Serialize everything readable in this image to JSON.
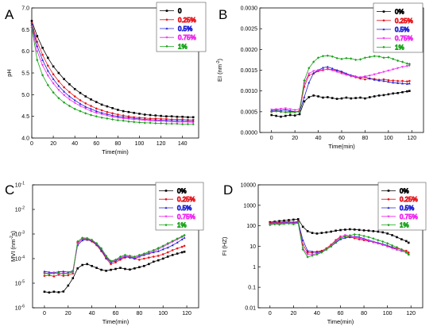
{
  "chart_data": [
    {
      "type": "line",
      "panel": "A",
      "xlabel": "Time(min)",
      "ylabel": "pH",
      "xlim": [
        0,
        155
      ],
      "ylim": [
        4.0,
        7.0
      ],
      "xticks": [
        "0",
        "20",
        "40",
        "60",
        "80",
        "100",
        "120",
        "140"
      ],
      "yticks": [
        "4.0",
        "4.5",
        "5.0",
        "5.5",
        "6.0",
        "6.5",
        "7.0"
      ],
      "legend_position": "top-right",
      "x": [
        0,
        5,
        10,
        15,
        20,
        25,
        30,
        35,
        40,
        45,
        50,
        55,
        60,
        65,
        70,
        75,
        80,
        85,
        90,
        95,
        100,
        105,
        110,
        115,
        120,
        125,
        130,
        135,
        140,
        145,
        150
      ],
      "series": [
        {
          "name": "0",
          "color": "#000000",
          "values": [
            6.7,
            6.35,
            6.08,
            5.85,
            5.65,
            5.5,
            5.36,
            5.24,
            5.13,
            5.04,
            4.96,
            4.89,
            4.83,
            4.77,
            4.73,
            4.69,
            4.65,
            4.62,
            4.6,
            4.58,
            4.56,
            4.54,
            4.53,
            4.52,
            4.51,
            4.5,
            4.5,
            4.49,
            4.49,
            4.48,
            4.48
          ]
        },
        {
          "name": "0.25%",
          "color": "#e8141b",
          "values": [
            6.65,
            6.22,
            5.92,
            5.67,
            5.47,
            5.31,
            5.17,
            5.06,
            4.96,
            4.87,
            4.8,
            4.74,
            4.68,
            4.64,
            4.6,
            4.57,
            4.54,
            4.52,
            4.5,
            4.48,
            4.47,
            4.46,
            4.45,
            4.45,
            4.44,
            4.44,
            4.43,
            4.43,
            4.43,
            4.42,
            4.42
          ]
        },
        {
          "name": "0.5%",
          "color": "#1f1fd6",
          "values": [
            6.62,
            6.12,
            5.8,
            5.55,
            5.36,
            5.2,
            5.07,
            4.96,
            4.87,
            4.79,
            4.72,
            4.67,
            4.62,
            4.58,
            4.55,
            4.52,
            4.5,
            4.48,
            4.47,
            4.45,
            4.44,
            4.43,
            4.42,
            4.42,
            4.41,
            4.41,
            4.4,
            4.4,
            4.4,
            4.39,
            4.39
          ]
        },
        {
          "name": "0.75%",
          "color": "#ee28ee",
          "values": [
            6.58,
            6.0,
            5.68,
            5.44,
            5.26,
            5.11,
            4.99,
            4.89,
            4.81,
            4.74,
            4.68,
            4.62,
            4.58,
            4.55,
            4.52,
            4.49,
            4.47,
            4.45,
            4.44,
            4.43,
            4.42,
            4.41,
            4.4,
            4.39,
            4.39,
            4.38,
            4.38,
            4.37,
            4.37,
            4.37,
            4.36
          ]
        },
        {
          "name": "1%",
          "color": "#17a317",
          "values": [
            6.55,
            5.8,
            5.45,
            5.22,
            5.05,
            4.92,
            4.82,
            4.74,
            4.67,
            4.62,
            4.57,
            4.53,
            4.5,
            4.47,
            4.45,
            4.43,
            4.41,
            4.4,
            4.38,
            4.37,
            4.36,
            4.35,
            4.35,
            4.34,
            4.34,
            4.33,
            4.33,
            4.33,
            4.32,
            4.32,
            4.32
          ]
        }
      ]
    },
    {
      "type": "line",
      "panel": "B",
      "xlabel": "Time(min)",
      "ylabel": "EI (nm",
      "ylabel_sup": "-2",
      "ylabel_end": ")",
      "xlim": [
        -10,
        130
      ],
      "ylim": [
        0,
        0.003
      ],
      "xticks": [
        "0",
        "20",
        "40",
        "60",
        "80",
        "100",
        "120"
      ],
      "yticks": [
        "0.0000",
        "0.0005",
        "0.0010",
        "0.0015",
        "0.0020",
        "0.0025",
        "0.0030"
      ],
      "legend_position": "top-right",
      "x": [
        0,
        4,
        8,
        12,
        16,
        20,
        24,
        28,
        32,
        36,
        40,
        44,
        48,
        52,
        56,
        60,
        64,
        68,
        72,
        76,
        80,
        84,
        88,
        92,
        96,
        100,
        104,
        108,
        112,
        116,
        118
      ],
      "series": [
        {
          "name": "0%",
          "color": "#000000",
          "values": [
            0.00042,
            0.0004,
            0.00038,
            0.0004,
            0.00042,
            0.00041,
            0.00044,
            0.00075,
            0.00085,
            0.00089,
            0.00087,
            0.00084,
            0.00085,
            0.00083,
            0.00081,
            0.00082,
            0.00084,
            0.00082,
            0.00083,
            0.00084,
            0.00082,
            0.00085,
            0.00087,
            0.00089,
            0.0009,
            0.00092,
            0.00094,
            0.00095,
            0.00097,
            0.00099,
            0.001
          ]
        },
        {
          "name": "0.25%",
          "color": "#e8141b",
          "values": [
            0.0005,
            0.00052,
            0.0005,
            0.00049,
            0.00051,
            0.00049,
            0.00052,
            0.0011,
            0.00138,
            0.00142,
            0.00148,
            0.0015,
            0.00153,
            0.00151,
            0.00149,
            0.00145,
            0.0014,
            0.00136,
            0.00133,
            0.0013,
            0.00128,
            0.0013,
            0.00129,
            0.00127,
            0.00128,
            0.00126,
            0.00125,
            0.00124,
            0.00124,
            0.00123,
            0.00124
          ]
        },
        {
          "name": "0.5%",
          "color": "#1f1fd6",
          "values": [
            0.00053,
            0.00054,
            0.00053,
            0.00055,
            0.00052,
            0.0005,
            0.0005,
            0.00085,
            0.0012,
            0.00143,
            0.0015,
            0.00156,
            0.00158,
            0.00154,
            0.0015,
            0.00147,
            0.00142,
            0.00138,
            0.00135,
            0.00132,
            0.00134,
            0.0013,
            0.00127,
            0.00125,
            0.00124,
            0.00122,
            0.0012,
            0.00119,
            0.00118,
            0.00117,
            0.00118
          ]
        },
        {
          "name": "0.75%",
          "color": "#ee28ee",
          "values": [
            0.00055,
            0.00056,
            0.00057,
            0.00058,
            0.00056,
            0.00054,
            0.00056,
            0.00118,
            0.00142,
            0.00148,
            0.0015,
            0.00151,
            0.00152,
            0.0015,
            0.00146,
            0.00142,
            0.00139,
            0.00136,
            0.00134,
            0.00133,
            0.00135,
            0.00137,
            0.0014,
            0.00143,
            0.00146,
            0.00149,
            0.00152,
            0.00155,
            0.00158,
            0.0016,
            0.00161
          ]
        },
        {
          "name": "1%",
          "color": "#17a317",
          "values": [
            0.0005,
            0.00051,
            0.0005,
            0.00049,
            0.00048,
            0.00049,
            0.0005,
            0.00125,
            0.00155,
            0.0017,
            0.0018,
            0.00184,
            0.00185,
            0.00183,
            0.00179,
            0.00177,
            0.00179,
            0.00178,
            0.00175,
            0.00176,
            0.0018,
            0.00182,
            0.00184,
            0.00183,
            0.0018,
            0.00181,
            0.00177,
            0.00173,
            0.0017,
            0.00166,
            0.00165
          ]
        }
      ]
    },
    {
      "type": "line",
      "panel": "C",
      "xlabel": "Time(min)",
      "ylabel": "MVI (nm",
      "ylabel_sup": "-2",
      "ylabel_end": "s)",
      "y_scale": "log",
      "xlim": [
        -10,
        130
      ],
      "ylim": [
        1e-06,
        0.1
      ],
      "xticks": [
        "0",
        "20",
        "40",
        "60",
        "80",
        "100",
        "120"
      ],
      "yticks": [
        {
          "base": "10",
          "exp": "-6",
          "value": 1e-06
        },
        {
          "base": "10",
          "exp": "-5",
          "value": 1e-05
        },
        {
          "base": "10",
          "exp": "-4",
          "value": 0.0001
        },
        {
          "base": "10",
          "exp": "-3",
          "value": 0.001
        },
        {
          "base": "10",
          "exp": "-2",
          "value": 0.01
        },
        {
          "base": "10",
          "exp": "-1",
          "value": 0.1
        }
      ],
      "legend_position": "top-right",
      "x": [
        0,
        4,
        8,
        12,
        16,
        20,
        24,
        28,
        32,
        36,
        40,
        44,
        48,
        52,
        56,
        60,
        64,
        68,
        72,
        76,
        80,
        84,
        88,
        92,
        96,
        100,
        104,
        108,
        112,
        116,
        118
      ],
      "series": [
        {
          "name": "0%",
          "color": "#000000",
          "values": [
            4.5e-06,
            4.2e-06,
            4.5e-06,
            4.3e-06,
            4.6e-06,
            8e-06,
            1.6e-05,
            4e-05,
            5.5e-05,
            6e-05,
            5e-05,
            4.2e-05,
            3.5e-05,
            3.2e-05,
            3.5e-05,
            3.8e-05,
            4.2e-05,
            3.8e-05,
            3.6e-05,
            4e-05,
            4.5e-05,
            5e-05,
            6e-05,
            7.5e-05,
            8.5e-05,
            0.0001,
            0.00012,
            0.00014,
            0.00016,
            0.00018,
            0.00019
          ]
        },
        {
          "name": "0.25%",
          "color": "#e8141b",
          "values": [
            2e-05,
            2.1e-05,
            1.9e-05,
            2.2e-05,
            2e-05,
            2.1e-05,
            2.5e-05,
            0.00045,
            0.00062,
            0.00058,
            0.0005,
            0.00035,
            0.0002,
            0.0001,
            6e-05,
            7e-05,
            9e-05,
            0.00011,
            0.00012,
            0.0001,
            9e-05,
            0.0001,
            0.00011,
            0.00012,
            0.00013,
            0.00015,
            0.00018,
            0.00022,
            0.00026,
            0.0003,
            0.00033
          ]
        },
        {
          "name": "0.5%",
          "color": "#1f1fd6",
          "values": [
            3e-05,
            2.8e-05,
            2.7e-05,
            2.9e-05,
            3e-05,
            2.8e-05,
            3.2e-05,
            0.00035,
            0.00055,
            0.0006,
            0.00052,
            0.00038,
            0.00022,
            0.00011,
            7e-05,
            8e-05,
            0.0001,
            0.00012,
            0.00011,
            0.0001,
            0.00012,
            0.00014,
            0.00016,
            0.00018,
            0.0002,
            0.00024,
            0.00028,
            0.00035,
            0.00045,
            0.0006,
            0.0007
          ]
        },
        {
          "name": "0.75%",
          "color": "#ee28ee",
          "values": [
            2.6e-05,
            2.5e-05,
            2.7e-05,
            2.4e-05,
            2.6e-05,
            2.5e-05,
            2.8e-05,
            0.0004,
            0.00065,
            0.00064,
            0.00055,
            0.0004,
            0.00025,
            0.00012,
            7.5e-05,
            8.5e-05,
            0.00011,
            0.00013,
            0.00012,
            0.00011,
            0.00013,
            0.00015,
            0.00017,
            0.0002,
            0.00024,
            0.0003,
            0.00038,
            0.00048,
            0.0006,
            0.00075,
            0.00085
          ]
        },
        {
          "name": "1%",
          "color": "#17a317",
          "values": [
            2.5e-05,
            2.4e-05,
            2.5e-05,
            2.6e-05,
            2.4e-05,
            2.5e-05,
            3e-05,
            0.0005,
            0.0007,
            0.00068,
            0.00058,
            0.00042,
            0.00026,
            0.00013,
            8e-05,
            9e-05,
            0.00012,
            0.00014,
            0.00013,
            0.00012,
            0.00014,
            0.00016,
            0.00019,
            0.00022,
            0.00027,
            0.00033,
            0.00042,
            0.00052,
            0.00065,
            0.0008,
            0.0009
          ]
        }
      ]
    },
    {
      "type": "line",
      "panel": "D",
      "xlabel": "Time(min)",
      "ylabel": "FI (HZ)",
      "y_scale": "log",
      "xlim": [
        -10,
        130
      ],
      "ylim": [
        0.01,
        10000
      ],
      "xticks": [
        "0",
        "20",
        "40",
        "60",
        "80",
        "100",
        "120"
      ],
      "yticks": [
        {
          "label": "0.01",
          "value": 0.01
        },
        {
          "label": "0.1",
          "value": 0.1
        },
        {
          "label": "1",
          "value": 1
        },
        {
          "label": "10",
          "value": 10
        },
        {
          "label": "100",
          "value": 100
        },
        {
          "label": "1000",
          "value": 1000
        },
        {
          "label": "10000",
          "value": 10000
        }
      ],
      "legend_position": "top-right",
      "x": [
        0,
        4,
        8,
        12,
        16,
        20,
        24,
        28,
        32,
        36,
        40,
        44,
        48,
        52,
        56,
        60,
        64,
        68,
        72,
        76,
        80,
        84,
        88,
        92,
        96,
        100,
        104,
        108,
        112,
        116,
        118
      ],
      "series": [
        {
          "name": "0%",
          "color": "#000000",
          "values": [
            150,
            160,
            170,
            180,
            190,
            200,
            210,
            90,
            55,
            45,
            42,
            45,
            48,
            52,
            58,
            62,
            65,
            68,
            66,
            63,
            60,
            58,
            55,
            52,
            48,
            42,
            35,
            28,
            22,
            18,
            15
          ]
        },
        {
          "name": "0.25%",
          "color": "#e8141b",
          "values": [
            140,
            150,
            145,
            155,
            160,
            150,
            165,
            12,
            5,
            5,
            5.5,
            6,
            8,
            12,
            20,
            30,
            32,
            28,
            25,
            22,
            20,
            18,
            16,
            14,
            12,
            10,
            9,
            8,
            7,
            6,
            5
          ]
        },
        {
          "name": "0.5%",
          "color": "#1f1fd6",
          "values": [
            130,
            140,
            135,
            145,
            150,
            140,
            155,
            20,
            6,
            5.5,
            5,
            5.5,
            7,
            10,
            15,
            22,
            26,
            28,
            30,
            28,
            24,
            20,
            17,
            15,
            13,
            11,
            9,
            7,
            6,
            5,
            4
          ]
        },
        {
          "name": "0.75%",
          "color": "#ee28ee",
          "values": [
            120,
            130,
            125,
            135,
            140,
            130,
            145,
            8,
            4,
            4,
            4.5,
            5,
            7,
            11,
            18,
            28,
            35,
            32,
            28,
            25,
            22,
            19,
            16,
            14,
            12,
            10,
            8,
            7,
            6,
            5,
            4
          ]
        },
        {
          "name": "1%",
          "color": "#17a317",
          "values": [
            110,
            120,
            115,
            125,
            130,
            120,
            135,
            7,
            3,
            3.5,
            4,
            5,
            7,
            10,
            16,
            25,
            30,
            34,
            38,
            36,
            32,
            28,
            24,
            20,
            17,
            14,
            11,
            9,
            7,
            5,
            4
          ]
        }
      ]
    }
  ]
}
